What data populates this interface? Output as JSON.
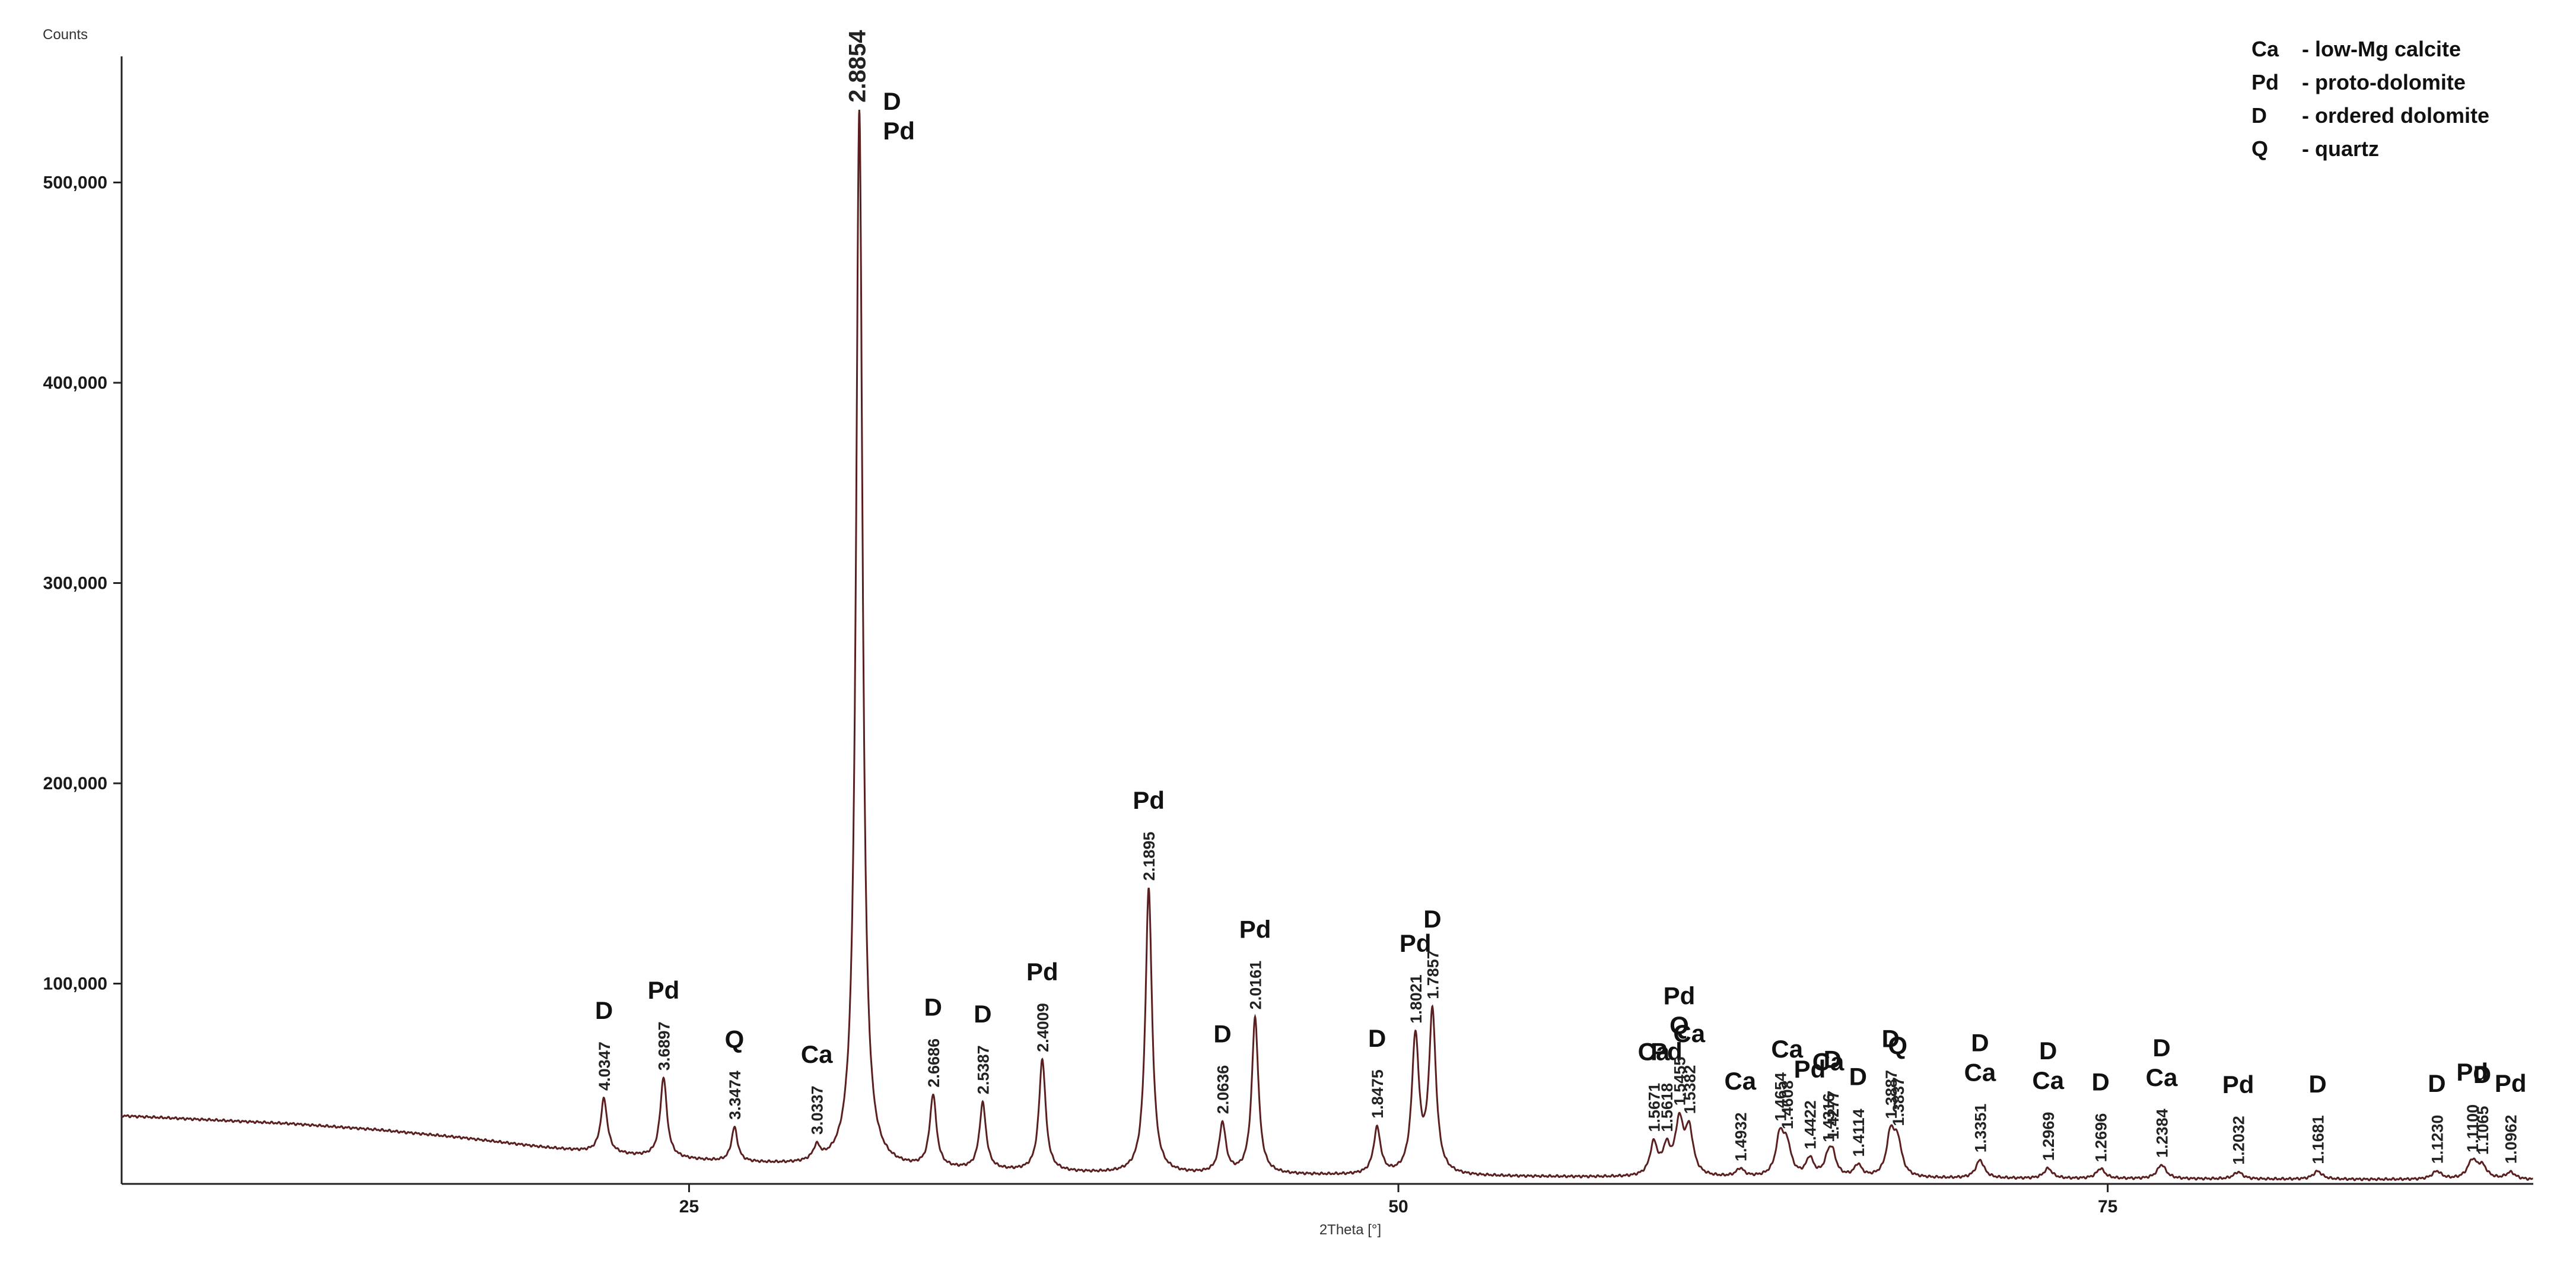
{
  "chart_data": {
    "type": "line",
    "xlabel": "2Theta [°]",
    "ylabel": "Counts",
    "xlim": [
      5,
      90
    ],
    "ylim": [
      0,
      560000
    ],
    "x_ticks": [
      25,
      50,
      75
    ],
    "y_ticks": [
      {
        "value": 100000,
        "label": "100,000"
      },
      {
        "value": 200000,
        "label": "200,000"
      },
      {
        "value": 300000,
        "label": "300,000"
      },
      {
        "value": 400000,
        "label": "400,000"
      },
      {
        "value": 500000,
        "label": "500,000"
      }
    ],
    "line_color": "#5a2020",
    "background_points": [
      {
        "x": 5,
        "y": 34000
      },
      {
        "x": 8,
        "y": 32000
      },
      {
        "x": 11,
        "y": 30000
      },
      {
        "x": 14,
        "y": 27000
      },
      {
        "x": 17,
        "y": 23000
      },
      {
        "x": 20,
        "y": 18000
      },
      {
        "x": 23,
        "y": 14000
      },
      {
        "x": 26,
        "y": 11000
      },
      {
        "x": 29,
        "y": 9000
      },
      {
        "x": 32,
        "y": 7500
      },
      {
        "x": 40,
        "y": 5000
      },
      {
        "x": 50,
        "y": 4000
      },
      {
        "x": 60,
        "y": 3000
      },
      {
        "x": 75,
        "y": 2500
      },
      {
        "x": 90,
        "y": 2000
      }
    ],
    "peaks": [
      {
        "x": 22.0,
        "y": 27000,
        "w": 0.14,
        "d": "4.0347",
        "phases": [
          "D"
        ]
      },
      {
        "x": 24.1,
        "y": 40000,
        "w": 0.14,
        "d": "3.6897",
        "phases": [
          "Pd"
        ]
      },
      {
        "x": 26.6,
        "y": 17000,
        "w": 0.13,
        "d": "3.3474",
        "phases": [
          "Q"
        ]
      },
      {
        "x": 29.5,
        "y": 7000,
        "w": 0.15,
        "d": "3.0337",
        "phases": [
          "Ca"
        ]
      },
      {
        "x": 31.0,
        "y": 528000,
        "w": 0.14,
        "d": "2.8854",
        "phases": [
          "D",
          "Pd"
        ],
        "big": true
      },
      {
        "x": 33.6,
        "y": 36000,
        "w": 0.14,
        "d": "2.6686",
        "phases": [
          "D"
        ]
      },
      {
        "x": 35.35,
        "y": 33000,
        "w": 0.14,
        "d": "2.5387",
        "phases": [
          "D"
        ]
      },
      {
        "x": 37.45,
        "y": 56000,
        "w": 0.14,
        "d": "2.4009",
        "phases": [
          "Pd"
        ]
      },
      {
        "x": 41.2,
        "y": 142000,
        "w": 0.14,
        "d": "2.1895",
        "phases": [
          "Pd"
        ]
      },
      {
        "x": 43.8,
        "y": 25000,
        "w": 0.14,
        "d": "2.0636",
        "phases": [
          "D"
        ]
      },
      {
        "x": 44.95,
        "y": 78000,
        "w": 0.14,
        "d": "2.0161",
        "phases": [
          "Pd"
        ]
      },
      {
        "x": 49.25,
        "y": 23000,
        "w": 0.15,
        "d": "1.8475",
        "phases": [
          "D"
        ]
      },
      {
        "x": 50.6,
        "y": 68000,
        "w": 0.15,
        "d": "1.8021",
        "phases": [
          "Pd"
        ]
      },
      {
        "x": 51.2,
        "y": 80000,
        "w": 0.15,
        "d": "1.7857",
        "phases": [
          "D"
        ]
      },
      {
        "x": 59.0,
        "y": 16000,
        "w": 0.16,
        "d": "1.5671",
        "phases": [
          "Ca"
        ]
      },
      {
        "x": 59.45,
        "y": 13000,
        "w": 0.16,
        "d": "1.5618",
        "phases": [
          "Pd"
        ]
      },
      {
        "x": 59.9,
        "y": 26000,
        "w": 0.17,
        "d": "1.5455",
        "phases": [
          "Pd",
          "Q"
        ]
      },
      {
        "x": 60.25,
        "y": 22000,
        "w": 0.17,
        "d": "1.5382",
        "phases": [
          "Ca"
        ]
      },
      {
        "x": 62.05,
        "y": 4000,
        "w": 0.17,
        "d": "1.4932",
        "phases": [
          "Ca"
        ]
      },
      {
        "x": 63.45,
        "y": 20000,
        "w": 0.17,
        "d": "1.4654",
        "phases": []
      },
      {
        "x": 63.7,
        "y": 14000,
        "w": 0.17,
        "d": "1.4608",
        "phases": [
          "Ca"
        ]
      },
      {
        "x": 64.5,
        "y": 9000,
        "w": 0.16,
        "d": "1.4422",
        "phases": [
          "Pd"
        ]
      },
      {
        "x": 65.15,
        "y": 8000,
        "w": 0.16,
        "d": "1.4316",
        "phases": [
          "Ca"
        ]
      },
      {
        "x": 65.3,
        "y": 10000,
        "w": 0.16,
        "d": "1.4277",
        "phases": [
          "D"
        ]
      },
      {
        "x": 66.2,
        "y": 6000,
        "w": 0.16,
        "d": "1.4114",
        "phases": [
          "D"
        ]
      },
      {
        "x": 67.35,
        "y": 21000,
        "w": 0.17,
        "d": "1.3887",
        "phases": [
          "D"
        ]
      },
      {
        "x": 67.6,
        "y": 16000,
        "w": 0.17,
        "d": "1.3837",
        "phases": [
          "Q"
        ]
      },
      {
        "x": 70.5,
        "y": 9000,
        "w": 0.18,
        "d": "1.3351",
        "phases": [
          "D",
          "Ca"
        ]
      },
      {
        "x": 72.9,
        "y": 5000,
        "w": 0.18,
        "d": "1.2969",
        "phases": [
          "D",
          "Ca"
        ]
      },
      {
        "x": 74.75,
        "y": 5000,
        "w": 0.18,
        "d": "1.2696",
        "phases": [
          "D"
        ]
      },
      {
        "x": 76.9,
        "y": 7000,
        "w": 0.19,
        "d": "1.2384",
        "phases": [
          "D",
          "Ca"
        ]
      },
      {
        "x": 79.6,
        "y": 3500,
        "w": 0.19,
        "d": "1.2032",
        "phases": [
          "Pd"
        ]
      },
      {
        "x": 82.4,
        "y": 4000,
        "w": 0.19,
        "d": "1.1681",
        "phases": [
          "D"
        ]
      },
      {
        "x": 86.6,
        "y": 4000,
        "w": 0.2,
        "d": "1.1230",
        "phases": [
          "D"
        ]
      },
      {
        "x": 87.85,
        "y": 9000,
        "w": 0.2,
        "d": "1.1100",
        "phases": [
          "Pd"
        ]
      },
      {
        "x": 88.2,
        "y": 6000,
        "w": 0.2,
        "d": "1.1065",
        "phases": [
          "D"
        ]
      },
      {
        "x": 89.2,
        "y": 3500,
        "w": 0.2,
        "d": "1.0962",
        "phases": [
          "Pd"
        ]
      }
    ],
    "legend": [
      {
        "abbr": "Ca",
        "desc": "- low-Mg calcite"
      },
      {
        "abbr": "Pd",
        "desc": "- proto-dolomite"
      },
      {
        "abbr": "D",
        "desc": "- ordered dolomite"
      },
      {
        "abbr": "Q",
        "desc": "- quartz"
      }
    ],
    "legend_position": "top-right",
    "grid": false
  }
}
